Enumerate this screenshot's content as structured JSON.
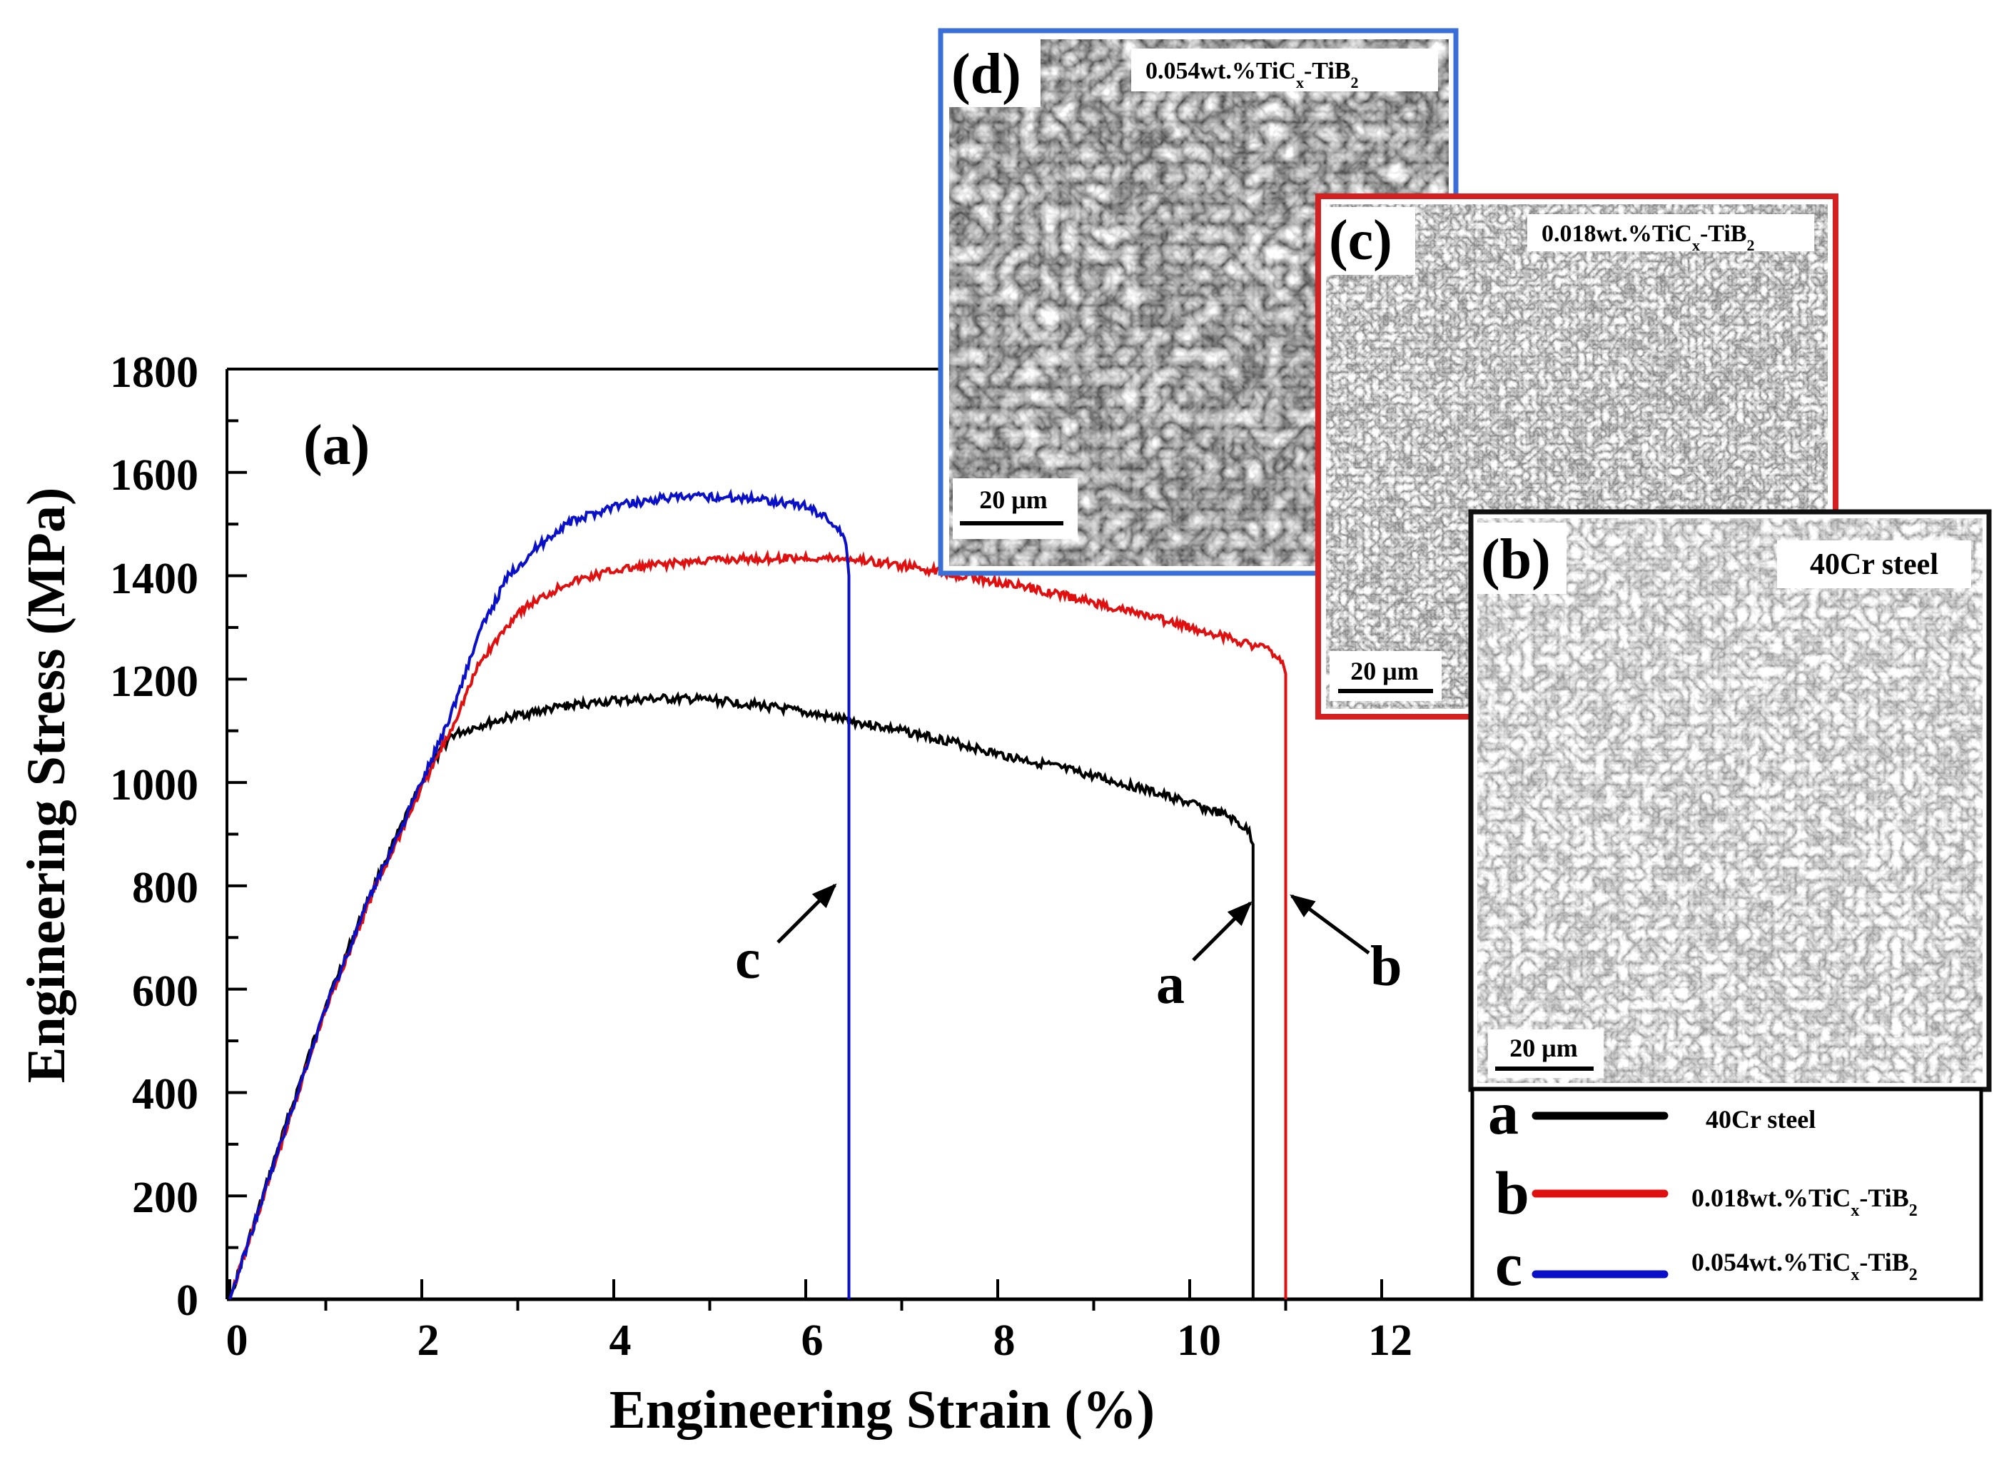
{
  "figure": {
    "panel_label": "(a)",
    "x_axis_title": "Engineering Strain (%)",
    "y_axis_title": "Engineering Stress (MPa)",
    "x_ticks": [
      "0",
      "2",
      "4",
      "6",
      "8",
      "10",
      "12"
    ],
    "y_ticks": [
      "0",
      "200",
      "400",
      "600",
      "800",
      "1000",
      "1200",
      "1400",
      "1600",
      "1800"
    ],
    "annotations": {
      "a": "a",
      "b": "b",
      "c": "c"
    },
    "legend": [
      {
        "letter": "a",
        "label": "40Cr steel",
        "color": "#000000"
      },
      {
        "letter": "b",
        "label_main": "0.018wt.%TiC",
        "sub1": "x",
        "mid": "-TiB",
        "sub2": "2",
        "color": "#e01010"
      },
      {
        "letter": "c",
        "label_main": "0.054wt.%TiC",
        "sub1": "x",
        "mid": "-TiB",
        "sub2": "2",
        "color": "#0a10c8"
      }
    ],
    "insets": {
      "d": {
        "label": "(d)",
        "tag_main": "0.054wt.%TiC",
        "tag_sub1": "x",
        "tag_mid": "-TiB",
        "tag_sub2": "2",
        "scale_bar": "20 μm",
        "border_color": "#3a6fd8"
      },
      "c": {
        "label": "(c)",
        "tag_main": "0.018wt.%TiC",
        "tag_sub1": "x",
        "tag_mid": "-TiB",
        "tag_sub2": "2",
        "scale_bar": "20 μm",
        "border_color": "#d42020"
      },
      "b": {
        "label": "(b)",
        "tag": "40Cr steel",
        "scale_bar": "20 μm",
        "border_color": "#111111"
      }
    }
  },
  "chart_data": {
    "type": "line",
    "title": "",
    "xlabel": "Engineering Strain (%)",
    "ylabel": "Engineering Stress (MPa)",
    "xlim": [
      0,
      13
    ],
    "ylim": [
      0,
      1800
    ],
    "x_ticks": [
      0,
      2,
      4,
      6,
      8,
      10,
      12
    ],
    "y_ticks": [
      0,
      200,
      400,
      600,
      800,
      1000,
      1200,
      1400,
      1600,
      1800
    ],
    "grid": false,
    "legend_position": "lower right (outside plot, under inset b)",
    "series": [
      {
        "name": "a — 40Cr steel",
        "color": "#000000",
        "x": [
          0,
          0.5,
          1.0,
          1.5,
          2.0,
          2.3,
          2.6,
          3.0,
          3.5,
          4.0,
          4.5,
          5.0,
          5.5,
          6.0,
          6.5,
          7.0,
          7.5,
          8.0,
          8.5,
          9.0,
          9.5,
          10.0,
          10.4,
          10.62,
          10.66,
          10.66
        ],
        "y": [
          0,
          290,
          570,
          800,
          1000,
          1090,
          1110,
          1130,
          1148,
          1158,
          1162,
          1160,
          1150,
          1135,
          1118,
          1100,
          1080,
          1055,
          1035,
          1012,
          988,
          960,
          935,
          905,
          880,
          0
        ]
      },
      {
        "name": "b — 0.018wt.%TiCx-TiB2",
        "color": "#e01010",
        "x": [
          0,
          0.5,
          1.0,
          1.5,
          2.0,
          2.3,
          2.6,
          3.0,
          3.5,
          4.0,
          4.5,
          5.0,
          5.5,
          6.0,
          6.5,
          7.0,
          7.5,
          8.0,
          8.5,
          9.0,
          9.5,
          10.0,
          10.5,
          10.8,
          10.95,
          11.0,
          11.0
        ],
        "y": [
          0,
          280,
          560,
          790,
          990,
          1100,
          1230,
          1330,
          1385,
          1410,
          1422,
          1430,
          1433,
          1435,
          1432,
          1420,
          1405,
          1388,
          1370,
          1348,
          1325,
          1300,
          1275,
          1258,
          1240,
          1210,
          0
        ]
      },
      {
        "name": "c — 0.054wt.%TiCx-TiB2",
        "color": "#0a10c8",
        "x": [
          0,
          0.5,
          1.0,
          1.5,
          2.0,
          2.3,
          2.6,
          2.9,
          3.2,
          3.5,
          4.0,
          4.5,
          5.0,
          5.5,
          6.0,
          6.2,
          6.35,
          6.42,
          6.45,
          6.45
        ],
        "y": [
          0,
          285,
          565,
          795,
          1000,
          1130,
          1290,
          1400,
          1455,
          1500,
          1535,
          1550,
          1553,
          1550,
          1535,
          1515,
          1490,
          1460,
          1400,
          0
        ]
      }
    ],
    "annotations": [
      {
        "text": "a",
        "points_to": [
          10.66,
          880
        ]
      },
      {
        "text": "b",
        "points_to": [
          11.0,
          880
        ]
      },
      {
        "text": "c",
        "points_to": [
          6.45,
          800
        ]
      }
    ],
    "insets": [
      {
        "label": "(b)",
        "caption": "40Cr steel",
        "scale_bar": "20 μm"
      },
      {
        "label": "(c)",
        "caption": "0.018wt.%TiCx-TiB2",
        "scale_bar": "20 μm"
      },
      {
        "label": "(d)",
        "caption": "0.054wt.%TiCx-TiB2",
        "scale_bar": "20 μm"
      }
    ]
  }
}
